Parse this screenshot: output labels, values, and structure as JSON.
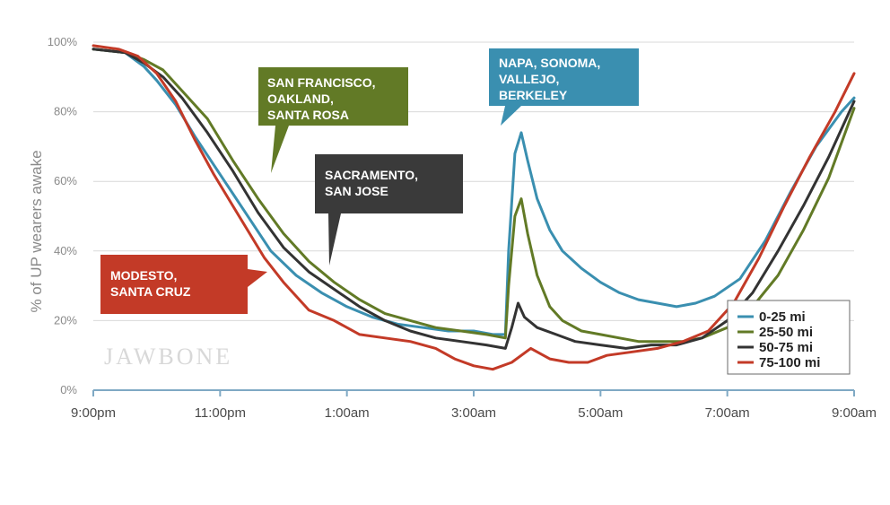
{
  "chart_data": {
    "type": "line",
    "ylabel": "% of UP wearers awake",
    "xlabel": "",
    "x_ticks": [
      "9:00pm",
      "11:00pm",
      "1:00am",
      "3:00am",
      "5:00am",
      "7:00am",
      "9:00am"
    ],
    "y_ticks": [
      "0%",
      "20%",
      "40%",
      "60%",
      "80%",
      "100%"
    ],
    "xlim": [
      0,
      12
    ],
    "ylim": [
      0,
      100
    ],
    "grid": true,
    "legend_position": "bottom-right",
    "watermark": "JAWBONE",
    "series": [
      {
        "name": "0-25 mi",
        "color": "#3a8fb0",
        "points": [
          [
            0,
            98
          ],
          [
            0.5,
            97
          ],
          [
            0.8,
            93
          ],
          [
            1,
            89
          ],
          [
            1.3,
            82
          ],
          [
            1.6,
            73
          ],
          [
            2,
            62
          ],
          [
            2.4,
            51
          ],
          [
            2.8,
            40
          ],
          [
            3.2,
            33
          ],
          [
            3.6,
            28
          ],
          [
            4,
            24
          ],
          [
            4.4,
            21
          ],
          [
            4.8,
            19
          ],
          [
            5.2,
            18
          ],
          [
            5.6,
            17
          ],
          [
            6,
            17
          ],
          [
            6.3,
            16
          ],
          [
            6.5,
            16
          ],
          [
            6.55,
            40
          ],
          [
            6.65,
            68
          ],
          [
            6.75,
            74
          ],
          [
            6.85,
            66
          ],
          [
            7,
            55
          ],
          [
            7.2,
            46
          ],
          [
            7.4,
            40
          ],
          [
            7.7,
            35
          ],
          [
            8,
            31
          ],
          [
            8.3,
            28
          ],
          [
            8.6,
            26
          ],
          [
            8.9,
            25
          ],
          [
            9.2,
            24
          ],
          [
            9.5,
            25
          ],
          [
            9.8,
            27
          ],
          [
            10.2,
            32
          ],
          [
            10.6,
            43
          ],
          [
            11,
            57
          ],
          [
            11.4,
            70
          ],
          [
            11.8,
            80
          ],
          [
            12,
            84
          ]
        ]
      },
      {
        "name": "25-50 mi",
        "color": "#627a26",
        "points": [
          [
            0,
            98
          ],
          [
            0.5,
            97
          ],
          [
            0.8,
            95
          ],
          [
            1.1,
            92
          ],
          [
            1.4,
            86
          ],
          [
            1.8,
            78
          ],
          [
            2.2,
            66
          ],
          [
            2.6,
            55
          ],
          [
            3,
            45
          ],
          [
            3.4,
            37
          ],
          [
            3.8,
            31
          ],
          [
            4.2,
            26
          ],
          [
            4.6,
            22
          ],
          [
            5,
            20
          ],
          [
            5.4,
            18
          ],
          [
            5.8,
            17
          ],
          [
            6.2,
            16
          ],
          [
            6.5,
            15
          ],
          [
            6.55,
            30
          ],
          [
            6.65,
            50
          ],
          [
            6.75,
            55
          ],
          [
            6.85,
            45
          ],
          [
            7,
            33
          ],
          [
            7.2,
            24
          ],
          [
            7.4,
            20
          ],
          [
            7.7,
            17
          ],
          [
            8,
            16
          ],
          [
            8.3,
            15
          ],
          [
            8.6,
            14
          ],
          [
            9,
            14
          ],
          [
            9.3,
            14
          ],
          [
            9.6,
            15
          ],
          [
            10,
            18
          ],
          [
            10.4,
            24
          ],
          [
            10.8,
            33
          ],
          [
            11.2,
            46
          ],
          [
            11.6,
            61
          ],
          [
            12,
            81
          ]
        ]
      },
      {
        "name": "50-75 mi",
        "color": "#333333",
        "points": [
          [
            0,
            98
          ],
          [
            0.5,
            97
          ],
          [
            0.8,
            94
          ],
          [
            1.1,
            90
          ],
          [
            1.4,
            84
          ],
          [
            1.8,
            74
          ],
          [
            2.2,
            63
          ],
          [
            2.6,
            51
          ],
          [
            3,
            41
          ],
          [
            3.4,
            34
          ],
          [
            3.8,
            29
          ],
          [
            4.2,
            24
          ],
          [
            4.6,
            20
          ],
          [
            5,
            17
          ],
          [
            5.4,
            15
          ],
          [
            5.8,
            14
          ],
          [
            6.2,
            13
          ],
          [
            6.5,
            12
          ],
          [
            6.6,
            18
          ],
          [
            6.7,
            25
          ],
          [
            6.8,
            21
          ],
          [
            7,
            18
          ],
          [
            7.3,
            16
          ],
          [
            7.6,
            14
          ],
          [
            8,
            13
          ],
          [
            8.4,
            12
          ],
          [
            8.8,
            13
          ],
          [
            9.2,
            13
          ],
          [
            9.6,
            15
          ],
          [
            10,
            20
          ],
          [
            10.4,
            28
          ],
          [
            10.8,
            40
          ],
          [
            11.2,
            53
          ],
          [
            11.6,
            67
          ],
          [
            12,
            83
          ]
        ]
      },
      {
        "name": "75-100 mi",
        "color": "#c33a27",
        "points": [
          [
            0,
            99
          ],
          [
            0.4,
            98
          ],
          [
            0.7,
            96
          ],
          [
            1,
            91
          ],
          [
            1.3,
            83
          ],
          [
            1.6,
            72
          ],
          [
            1.9,
            62
          ],
          [
            2.3,
            50
          ],
          [
            2.7,
            38
          ],
          [
            3,
            31
          ],
          [
            3.4,
            23
          ],
          [
            3.8,
            20
          ],
          [
            4.2,
            16
          ],
          [
            4.6,
            15
          ],
          [
            5,
            14
          ],
          [
            5.4,
            12
          ],
          [
            5.7,
            9
          ],
          [
            6,
            7
          ],
          [
            6.3,
            6
          ],
          [
            6.6,
            8
          ],
          [
            6.9,
            12
          ],
          [
            7.2,
            9
          ],
          [
            7.5,
            8
          ],
          [
            7.8,
            8
          ],
          [
            8.1,
            10
          ],
          [
            8.5,
            11
          ],
          [
            8.9,
            12
          ],
          [
            9.3,
            14
          ],
          [
            9.7,
            17
          ],
          [
            10.1,
            25
          ],
          [
            10.5,
            38
          ],
          [
            10.9,
            53
          ],
          [
            11.3,
            67
          ],
          [
            11.7,
            80
          ],
          [
            12,
            91
          ]
        ]
      }
    ],
    "annotations": [
      {
        "lines": [
          "SAN FRANCISCO,",
          "OAKLAND,",
          "SANTA ROSA"
        ],
        "color": "#627a26"
      },
      {
        "lines": [
          "NAPA, SONOMA,",
          "VALLEJO,",
          "BERKELEY"
        ],
        "color": "#3a8fb0"
      },
      {
        "lines": [
          "SACRAMENTO,",
          "SAN JOSE"
        ],
        "color": "#3a3a3a"
      },
      {
        "lines": [
          "MODESTO,",
          "SANTA CRUZ"
        ],
        "color": "#c33a27"
      }
    ]
  }
}
